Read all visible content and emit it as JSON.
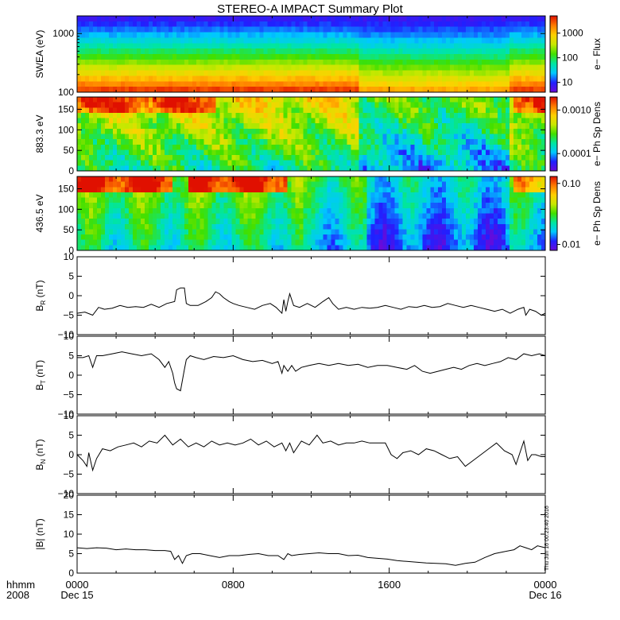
{
  "title": "STEREO-A IMPACT Summary Plot",
  "footer": {
    "left_top": "hhmm",
    "left_bottom": "2008",
    "timestamp": "Thu Jun 16 00:23:40 2016"
  },
  "xaxis": {
    "tick_labels": [
      "0000",
      "0800",
      "1600",
      "0000"
    ],
    "tick_hours": [
      0,
      8,
      16,
      24
    ],
    "date_labels": [
      "Dec 15",
      "Dec 16"
    ],
    "range_hours": [
      0,
      24
    ]
  },
  "colors": {
    "line": "#000000",
    "colormap": [
      "#6a0ad8",
      "#2020ff",
      "#00c8ff",
      "#00e6a0",
      "#40e000",
      "#c8e800",
      "#ffd000",
      "#ff7a00",
      "#e01000"
    ]
  },
  "chart_data": [
    {
      "type": "heatmap",
      "id": "swea",
      "ylabel": "SWEA (eV)",
      "yscale": "log",
      "ylim": [
        100,
        2000
      ],
      "yticks": [
        {
          "v": 100,
          "label": "100"
        },
        {
          "v": 1000,
          "label": "1000"
        }
      ],
      "colorbar": {
        "label": "e− Flux",
        "scale": "log",
        "range": [
          4,
          5000
        ],
        "ticks": [
          {
            "v": 10,
            "label": "10"
          },
          {
            "v": 100,
            "label": "100"
          },
          {
            "v": 1000,
            "label": "1000"
          }
        ]
      }
    },
    {
      "type": "heatmap",
      "id": "pad883",
      "ylabel": "883.3 eV",
      "ylim": [
        0,
        180
      ],
      "yticks": [
        {
          "v": 0,
          "label": "0"
        },
        {
          "v": 50,
          "label": "50"
        },
        {
          "v": 100,
          "label": "100"
        },
        {
          "v": 150,
          "label": "150"
        }
      ],
      "colorbar": {
        "label": "e− Ph Sp Dens",
        "scale": "log",
        "range": [
          4e-05,
          0.002
        ],
        "ticks": [
          {
            "v": 0.0001,
            "label": "0.0001"
          },
          {
            "v": 0.001,
            "label": "0.0010"
          }
        ]
      }
    },
    {
      "type": "heatmap",
      "id": "pad436",
      "ylabel": "436.5 eV",
      "ylim": [
        0,
        180
      ],
      "yticks": [
        {
          "v": 0,
          "label": "0"
        },
        {
          "v": 50,
          "label": "50"
        },
        {
          "v": 100,
          "label": "100"
        },
        {
          "v": 150,
          "label": "150"
        }
      ],
      "colorbar": {
        "label": "e− Ph Sp Dens",
        "scale": "log",
        "range": [
          0.008,
          0.13
        ],
        "ticks": [
          {
            "v": 0.01,
            "label": "0.01"
          },
          {
            "v": 0.1,
            "label": "0.10"
          }
        ]
      }
    },
    {
      "type": "line",
      "id": "br",
      "ylabel": "B",
      "ylabel_sub": "R",
      "ylabel_unit": "(nT)",
      "ylim": [
        -10,
        10
      ],
      "yticks": [
        {
          "v": -10,
          "label": "−10"
        },
        {
          "v": -5,
          "label": "−5"
        },
        {
          "v": 0,
          "label": "0"
        },
        {
          "v": 5,
          "label": "5"
        },
        {
          "v": 10,
          "label": "10"
        }
      ],
      "x": [
        0,
        0.4,
        0.8,
        1.1,
        1.4,
        1.8,
        2.2,
        2.6,
        3.0,
        3.4,
        3.8,
        4.2,
        4.6,
        5.0,
        5.1,
        5.3,
        5.5,
        5.6,
        5.8,
        6.2,
        6.6,
        6.9,
        7.1,
        7.3,
        7.5,
        7.8,
        8.0,
        8.3,
        8.7,
        9.1,
        9.5,
        9.9,
        10.2,
        10.5,
        10.6,
        10.7,
        10.8,
        10.9,
        11.1,
        11.4,
        11.8,
        12.2,
        12.6,
        12.9,
        13.1,
        13.4,
        13.8,
        14.2,
        14.6,
        15.0,
        15.4,
        15.8,
        16.2,
        16.6,
        17.0,
        17.4,
        17.8,
        18.2,
        18.6,
        19.0,
        19.4,
        19.8,
        20.2,
        20.6,
        21.0,
        21.4,
        21.8,
        22.2,
        22.6,
        22.9,
        23.0,
        23.2,
        23.5,
        23.8,
        24.0
      ],
      "y": [
        -4.5,
        -4.2,
        -5.0,
        -3.0,
        -3.5,
        -3.2,
        -2.5,
        -3.0,
        -2.8,
        -3.0,
        -2.2,
        -3.0,
        -2.0,
        -1.5,
        1.5,
        2.0,
        2.0,
        -2.0,
        -2.5,
        -2.5,
        -1.5,
        -0.5,
        1.0,
        0.5,
        -0.5,
        -1.5,
        -2.0,
        -2.5,
        -3.0,
        -3.5,
        -2.5,
        -2.0,
        -3.0,
        -4.5,
        -1.0,
        -4.0,
        -1.5,
        0.5,
        -2.5,
        -3.0,
        -2.0,
        -3.0,
        -1.5,
        -0.5,
        -2.0,
        -3.5,
        -3.0,
        -3.5,
        -3.0,
        -3.2,
        -3.0,
        -2.5,
        -3.0,
        -3.5,
        -2.8,
        -3.0,
        -2.5,
        -3.0,
        -2.8,
        -2.0,
        -2.5,
        -3.0,
        -2.5,
        -3.0,
        -3.5,
        -4.0,
        -3.5,
        -4.5,
        -3.5,
        -3.0,
        -5.0,
        -3.5,
        -4.0,
        -5.0,
        -4.5
      ]
    },
    {
      "type": "line",
      "id": "bt",
      "ylabel": "B",
      "ylabel_sub": "T",
      "ylabel_unit": "(nT)",
      "ylim": [
        -10,
        10
      ],
      "yticks": [
        {
          "v": -10,
          "label": "−10"
        },
        {
          "v": -5,
          "label": "−5"
        },
        {
          "v": 0,
          "label": "0"
        },
        {
          "v": 5,
          "label": "5"
        },
        {
          "v": 10,
          "label": "10"
        }
      ],
      "x": [
        0,
        0.3,
        0.6,
        0.8,
        1.0,
        1.3,
        1.8,
        2.3,
        2.8,
        3.3,
        3.8,
        4.2,
        4.5,
        4.7,
        4.9,
        5.0,
        5.1,
        5.3,
        5.5,
        5.6,
        5.8,
        6.1,
        6.5,
        7.0,
        7.5,
        8.0,
        8.5,
        9.0,
        9.5,
        10.0,
        10.3,
        10.5,
        10.6,
        10.8,
        11.0,
        11.2,
        11.5,
        11.9,
        12.4,
        12.9,
        13.4,
        13.9,
        14.4,
        14.9,
        15.4,
        15.9,
        16.4,
        16.9,
        17.3,
        17.7,
        18.1,
        18.5,
        18.9,
        19.3,
        19.7,
        20.1,
        20.5,
        20.9,
        21.3,
        21.7,
        22.1,
        22.5,
        22.9,
        23.3,
        23.7,
        24.0
      ],
      "y": [
        4.5,
        4.5,
        5.0,
        2.0,
        5.0,
        5.0,
        5.5,
        6.0,
        5.5,
        5.0,
        5.5,
        4.0,
        2.0,
        3.5,
        0.5,
        -2.0,
        -3.5,
        -4.0,
        1.5,
        4.0,
        5.0,
        4.5,
        4.0,
        4.8,
        4.5,
        5.0,
        4.0,
        3.5,
        3.8,
        3.0,
        3.5,
        0.5,
        2.5,
        1.0,
        2.5,
        1.0,
        2.0,
        2.5,
        3.0,
        2.5,
        3.0,
        2.5,
        2.8,
        2.0,
        2.5,
        2.5,
        2.0,
        1.5,
        2.5,
        1.0,
        0.5,
        1.0,
        1.5,
        2.0,
        1.5,
        2.5,
        3.0,
        2.5,
        3.0,
        3.5,
        4.5,
        4.0,
        5.5,
        5.0,
        5.5,
        5.0
      ]
    },
    {
      "type": "line",
      "id": "bn",
      "ylabel": "B",
      "ylabel_sub": "N",
      "ylabel_unit": "(nT)",
      "ylim": [
        -10,
        10
      ],
      "yticks": [
        {
          "v": -10,
          "label": "−10"
        },
        {
          "v": -5,
          "label": "−5"
        },
        {
          "v": 0,
          "label": "0"
        },
        {
          "v": 5,
          "label": "5"
        },
        {
          "v": 10,
          "label": "10"
        }
      ],
      "x": [
        0,
        0.3,
        0.5,
        0.6,
        0.8,
        1.0,
        1.3,
        1.7,
        2.1,
        2.5,
        2.9,
        3.3,
        3.7,
        4.1,
        4.5,
        4.9,
        5.3,
        5.7,
        6.1,
        6.5,
        6.9,
        7.3,
        7.7,
        8.1,
        8.5,
        8.9,
        9.3,
        9.7,
        10.1,
        10.5,
        10.7,
        10.9,
        11.1,
        11.5,
        11.9,
        12.3,
        12.6,
        13.0,
        13.4,
        13.8,
        14.2,
        14.6,
        15.0,
        15.4,
        15.8,
        16.1,
        16.4,
        16.7,
        17.1,
        17.5,
        17.9,
        18.3,
        18.7,
        19.1,
        19.5,
        19.9,
        20.3,
        20.7,
        21.1,
        21.5,
        21.9,
        22.3,
        22.5,
        22.7,
        22.9,
        23.1,
        23.3,
        23.5,
        23.8,
        24.0
      ],
      "y": [
        0,
        -1.5,
        -3.0,
        0.5,
        -4.0,
        -1.0,
        1.5,
        1.0,
        2.0,
        2.5,
        3.0,
        2.0,
        3.5,
        3.0,
        5.0,
        2.5,
        4.0,
        2.0,
        3.0,
        2.0,
        3.5,
        2.5,
        3.0,
        2.5,
        3.0,
        4.0,
        2.5,
        3.5,
        2.0,
        3.0,
        1.0,
        3.0,
        0.5,
        3.5,
        2.5,
        5.0,
        3.0,
        3.5,
        2.5,
        3.0,
        3.0,
        3.5,
        3.0,
        3.0,
        3.0,
        0.0,
        -1.0,
        0.5,
        1.0,
        0.0,
        1.5,
        1.0,
        0.0,
        -1.0,
        -0.5,
        -3.0,
        -1.5,
        0.0,
        1.5,
        3.0,
        1.0,
        0.0,
        -2.5,
        0.5,
        3.5,
        -1.5,
        0.0,
        0.0,
        -0.5,
        -0.5
      ]
    },
    {
      "type": "line",
      "id": "bmag",
      "ylabel": "|B|",
      "ylabel_sub": "",
      "ylabel_unit": "(nT)",
      "ylim": [
        0,
        20
      ],
      "yticks": [
        {
          "v": 0,
          "label": "0"
        },
        {
          "v": 5,
          "label": "5"
        },
        {
          "v": 10,
          "label": "10"
        },
        {
          "v": 15,
          "label": "15"
        },
        {
          "v": 20,
          "label": "20"
        }
      ],
      "x": [
        0,
        0.5,
        1.0,
        1.5,
        2.0,
        2.5,
        3.0,
        3.5,
        4.0,
        4.5,
        4.8,
        5.0,
        5.2,
        5.4,
        5.6,
        5.9,
        6.3,
        6.8,
        7.3,
        7.8,
        8.3,
        8.8,
        9.3,
        9.8,
        10.3,
        10.6,
        10.8,
        11.0,
        11.4,
        11.9,
        12.4,
        12.9,
        13.4,
        13.9,
        14.4,
        14.9,
        15.4,
        15.9,
        16.4,
        16.9,
        17.4,
        17.9,
        18.4,
        18.9,
        19.4,
        19.9,
        20.4,
        20.9,
        21.4,
        21.9,
        22.4,
        22.7,
        23.0,
        23.3,
        23.6,
        24.0
      ],
      "y": [
        6.5,
        6.3,
        6.5,
        6.4,
        6.0,
        6.2,
        6.0,
        6.0,
        5.8,
        5.8,
        5.6,
        3.5,
        4.5,
        2.5,
        4.5,
        5.0,
        5.0,
        4.5,
        4.0,
        4.5,
        4.5,
        4.8,
        5.0,
        4.5,
        4.5,
        3.5,
        5.0,
        4.5,
        4.8,
        5.0,
        5.2,
        5.0,
        5.0,
        4.5,
        4.6,
        4.0,
        3.8,
        3.6,
        3.2,
        3.0,
        2.8,
        2.6,
        2.5,
        2.4,
        2.0,
        2.5,
        2.8,
        4.0,
        5.0,
        5.5,
        6.0,
        7.0,
        6.5,
        6.0,
        7.0,
        6.5
      ]
    }
  ]
}
